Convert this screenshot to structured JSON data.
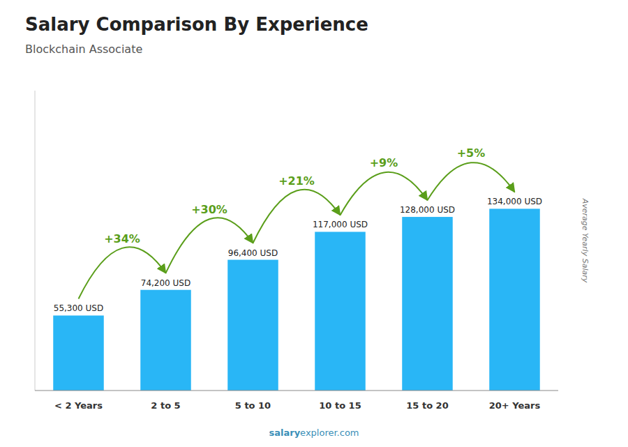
{
  "chart_data": {
    "type": "bar",
    "title": "Salary Comparison By Experience",
    "subtitle": "Blockchain Associate",
    "categories": [
      "< 2 Years",
      "2 to 5",
      "5 to 10",
      "10 to 15",
      "15 to 20",
      "20+ Years"
    ],
    "values": [
      55300,
      74200,
      96400,
      117000,
      128000,
      134000
    ],
    "value_labels": [
      "55,300 USD",
      "74,200 USD",
      "96,400 USD",
      "117,000 USD",
      "128,000 USD",
      "134,000 USD"
    ],
    "data_labels": true,
    "annotations": [
      "+34%",
      "+30%",
      "+21%",
      "+9%",
      "+5%"
    ],
    "ylabel": "Average Yearly Salary",
    "watermark": [
      "salary",
      "explorer.com"
    ],
    "color": "#29b6f6",
    "ylim": [
      0,
      221100
    ],
    "tick_labels": "x",
    "grid": false
  }
}
